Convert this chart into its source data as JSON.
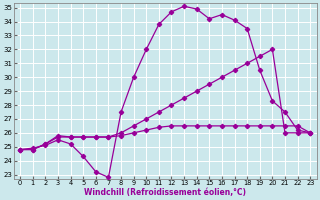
{
  "xlabel": "Windchill (Refroidissement éolien,°C)",
  "xlim": [
    -0.5,
    23.5
  ],
  "ylim": [
    22.7,
    35.3
  ],
  "yticks": [
    23,
    24,
    25,
    26,
    27,
    28,
    29,
    30,
    31,
    32,
    33,
    34,
    35
  ],
  "xticks": [
    0,
    1,
    2,
    3,
    4,
    5,
    6,
    7,
    8,
    9,
    10,
    11,
    12,
    13,
    14,
    15,
    16,
    17,
    18,
    19,
    20,
    21,
    22,
    23
  ],
  "bg_color": "#cce8ec",
  "grid_color": "#ffffff",
  "line_color": "#990099",
  "series1_x": [
    0,
    1,
    2,
    3,
    4,
    5,
    6,
    7,
    8,
    9,
    10,
    11,
    12,
    13,
    14,
    15,
    16,
    17,
    18,
    19,
    20,
    21,
    22,
    23
  ],
  "series1_y": [
    24.8,
    24.9,
    25.1,
    25.5,
    25.2,
    24.3,
    23.2,
    22.8,
    27.5,
    30.0,
    32.0,
    33.8,
    34.7,
    35.1,
    34.9,
    34.2,
    34.5,
    34.1,
    33.5,
    30.5,
    28.3,
    27.5,
    26.2,
    26.0
  ],
  "series2_x": [
    0,
    1,
    2,
    3,
    4,
    5,
    6,
    7,
    8,
    9,
    10,
    11,
    12,
    13,
    14,
    15,
    16,
    17,
    18,
    19,
    20,
    21,
    22,
    23
  ],
  "series2_y": [
    24.8,
    24.8,
    25.2,
    25.8,
    25.7,
    25.7,
    25.7,
    25.7,
    26.0,
    26.5,
    27.0,
    27.5,
    28.0,
    28.5,
    29.0,
    29.5,
    30.0,
    30.5,
    31.0,
    31.5,
    32.0,
    26.0,
    26.0,
    26.0
  ],
  "series3_x": [
    0,
    1,
    2,
    3,
    4,
    5,
    6,
    7,
    8,
    9,
    10,
    11,
    12,
    13,
    14,
    15,
    16,
    17,
    18,
    19,
    20,
    21,
    22,
    23
  ],
  "series3_y": [
    24.8,
    24.8,
    25.2,
    25.7,
    25.7,
    25.7,
    25.7,
    25.7,
    25.8,
    26.0,
    26.2,
    26.4,
    26.5,
    26.5,
    26.5,
    26.5,
    26.5,
    26.5,
    26.5,
    26.5,
    26.5,
    26.5,
    26.5,
    26.0
  ]
}
